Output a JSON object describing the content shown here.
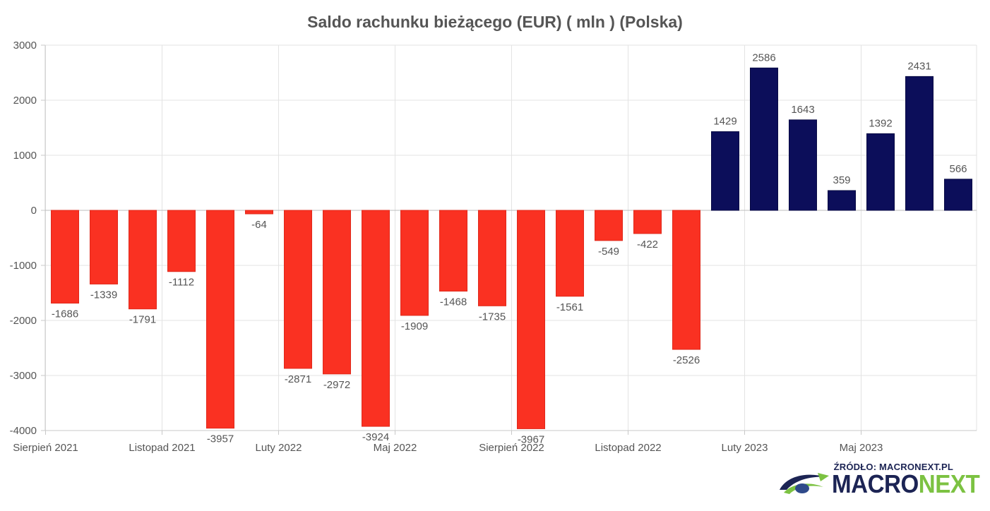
{
  "title": "Saldo rachunku bieżącego (EUR) ( mln ) (Polska)",
  "source": "ŹRÓDŁO: MACRONEXT.PL",
  "brand": {
    "part1": "MACRO",
    "part2": "NEXT"
  },
  "colors": {
    "negative": "#fa3122",
    "positive": "#0c0e5a",
    "grid": "#e3e3e3",
    "text": "#555555"
  },
  "chart_data": {
    "type": "bar",
    "title": "Saldo rachunku bieżącego (EUR) ( mln ) (Polska)",
    "xlabel": "",
    "ylabel": "",
    "ylim": [
      -4000,
      3000
    ],
    "yticks": [
      3000,
      2000,
      1000,
      0,
      -1000,
      -2000,
      -3000,
      -4000
    ],
    "grid": true,
    "legend": "none",
    "categories": [
      "2021-08",
      "2021-09",
      "2021-10",
      "2021-11",
      "2021-12",
      "2022-01",
      "2022-02",
      "2022-03",
      "2022-04",
      "2022-05",
      "2022-06",
      "2022-07",
      "2022-08",
      "2022-09",
      "2022-10",
      "2022-11",
      "2022-12",
      "2023-01",
      "2023-02",
      "2023-03",
      "2023-04",
      "2023-05",
      "2023-06",
      "2023-07"
    ],
    "values": [
      -1686,
      -1339,
      -1791,
      -1112,
      -3957,
      -64,
      -2871,
      -2972,
      -3924,
      -1909,
      -1468,
      -1735,
      -3967,
      -1561,
      -549,
      -422,
      -2526,
      1429,
      2586,
      1643,
      359,
      1392,
      2431,
      566
    ],
    "data_labels": [
      "-1686",
      "-1339",
      "-1791",
      "-1112",
      "-3957",
      "-64",
      "-2871",
      "-2972",
      "-3924",
      "-1909",
      "-1468",
      "-1735",
      "-3967",
      "-1561",
      "-549",
      "-422",
      "-2526",
      "1429",
      "2586",
      "1643",
      "359",
      "1392",
      "2431",
      "566"
    ],
    "x_tick_labels": [
      {
        "label": "Sierpień 2021",
        "at": "2021-08"
      },
      {
        "label": "Listopad 2021",
        "at": "2021-11"
      },
      {
        "label": "Luty 2022",
        "at": "2022-02"
      },
      {
        "label": "Maj 2022",
        "at": "2022-05"
      },
      {
        "label": "Sierpień 2022",
        "at": "2022-08"
      },
      {
        "label": "Listopad 2022",
        "at": "2022-11"
      },
      {
        "label": "Luty 2023",
        "at": "2023-02"
      },
      {
        "label": "Maj 2023",
        "at": "2023-05"
      }
    ]
  }
}
